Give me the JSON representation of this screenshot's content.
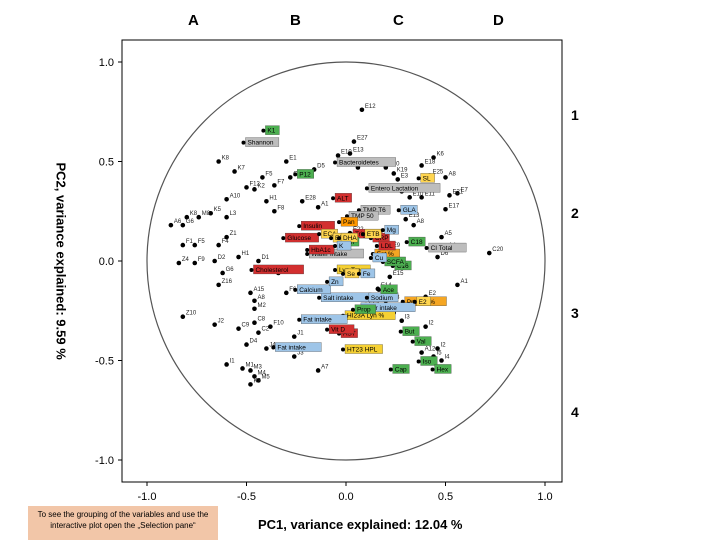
{
  "columns": [
    "A",
    "B",
    "C",
    "D"
  ],
  "regions": [
    "1",
    "2",
    "3",
    "4"
  ],
  "note": "To see the grouping of the variables and use the interactive plot open the „Selection pane“",
  "chart_data": {
    "type": "scatter",
    "xlabel": "PC1, variance explained: 12.04 %",
    "ylabel": "PC2, variance explained: 9.59 %",
    "xlim": [
      -1.0,
      1.0
    ],
    "ylim": [
      -1.0,
      1.0
    ],
    "x_ticks": [
      "-1.0",
      "-0.5",
      "0.0",
      "0.5",
      "1.0"
    ],
    "y_ticks": [
      "1.0",
      "0.5",
      "0.0",
      "-0.5",
      "-1.0"
    ],
    "unit_circle": true,
    "grid": false,
    "highlighted_points": [
      {
        "label": "Shannon",
        "x": -0.5,
        "y": 0.58,
        "color": "#bdbdbd"
      },
      {
        "label": "Bacteroidetes",
        "x": -0.04,
        "y": 0.48,
        "color": "#bdbdbd"
      },
      {
        "label": "Entero Lactation",
        "x": 0.12,
        "y": 0.35,
        "color": "#bdbdbd"
      },
      {
        "label": "TMP T6",
        "x": 0.08,
        "y": 0.24,
        "color": "#bdbdbd"
      },
      {
        "label": "TMP 50",
        "x": 0.02,
        "y": 0.21,
        "color": "#bdbdbd"
      },
      {
        "label": "CI Total",
        "x": 0.42,
        "y": 0.05,
        "color": "#bdbdbd"
      },
      {
        "label": "Water intake",
        "x": -0.18,
        "y": 0.02,
        "color": "#bdbdbd"
      },
      {
        "label": "Protein %",
        "x": 0.3,
        "y": -0.22,
        "color": "#f5a623"
      },
      {
        "label": "Fat %",
        "x": 0.15,
        "y": 0.02,
        "color": "#f5a623"
      },
      {
        "label": "HI23A Lyn %",
        "x": 0.0,
        "y": -0.29,
        "color": "#f5d033"
      },
      {
        "label": "HT23 HPL",
        "x": 0.0,
        "y": -0.46,
        "color": "#f5d033"
      },
      {
        "label": "Lyn Trp",
        "x": -0.04,
        "y": -0.06,
        "color": "#f5d033"
      },
      {
        "label": "Fat intake",
        "x": -0.35,
        "y": -0.45,
        "color": "#9ec5e8"
      },
      {
        "label": "Fat intake",
        "x": -0.22,
        "y": -0.31,
        "color": "#9ec5e8"
      },
      {
        "label": "Salt intake",
        "x": -0.12,
        "y": -0.2,
        "color": "#9ec5e8"
      },
      {
        "label": "Fiber intake",
        "x": 0.08,
        "y": -0.25,
        "color": "#9ec5e8"
      },
      {
        "label": "Sodium",
        "x": 0.12,
        "y": -0.2,
        "color": "#9ec5e8"
      },
      {
        "label": "Calcium",
        "x": -0.24,
        "y": -0.16,
        "color": "#9ec5e8"
      },
      {
        "label": "Cholesterol",
        "x": -0.46,
        "y": -0.06,
        "color": "#d32f2f"
      },
      {
        "label": "Glucose",
        "x": -0.3,
        "y": 0.1,
        "color": "#d32f2f"
      },
      {
        "label": "Insulin",
        "x": -0.22,
        "y": 0.16,
        "color": "#d32f2f"
      },
      {
        "label": "HbA1c",
        "x": -0.18,
        "y": 0.04,
        "color": "#d32f2f"
      },
      {
        "label": "Trigly",
        "x": 0.04,
        "y": 0.12,
        "color": "#d32f2f"
      },
      {
        "label": "CRP",
        "x": 0.14,
        "y": 0.1,
        "color": "#d32f2f"
      },
      {
        "label": "LDL",
        "x": 0.17,
        "y": 0.06,
        "color": "#d32f2f"
      },
      {
        "label": "ALT",
        "x": -0.05,
        "y": 0.3,
        "color": "#d32f2f"
      },
      {
        "label": "AST",
        "x": -0.02,
        "y": -0.38,
        "color": "#d32f2f"
      },
      {
        "label": "Vit D",
        "x": -0.08,
        "y": -0.36,
        "color": "#d32f2f"
      },
      {
        "label": "C18",
        "x": 0.32,
        "y": 0.08,
        "color": "#4caf50"
      },
      {
        "label": "C16",
        "x": 0.25,
        "y": -0.04,
        "color": "#4caf50"
      },
      {
        "label": "SCFA",
        "x": 0.2,
        "y": -0.02,
        "color": "#4caf50"
      },
      {
        "label": "Ace",
        "x": 0.18,
        "y": -0.16,
        "color": "#4caf50"
      },
      {
        "label": "Prop",
        "x": 0.05,
        "y": -0.26,
        "color": "#4caf50"
      },
      {
        "label": "But",
        "x": 0.29,
        "y": -0.37,
        "color": "#4caf50"
      },
      {
        "label": "Val",
        "x": 0.35,
        "y": -0.42,
        "color": "#4caf50"
      },
      {
        "label": "Iso",
        "x": 0.38,
        "y": -0.52,
        "color": "#4caf50"
      },
      {
        "label": "Cap",
        "x": 0.24,
        "y": -0.56,
        "color": "#4caf50"
      },
      {
        "label": "Hex",
        "x": 0.45,
        "y": -0.56,
        "color": "#4caf50"
      },
      {
        "label": "Ln",
        "x": 0.0,
        "y": 0.08,
        "color": "#4caf50"
      },
      {
        "label": "K1",
        "x": -0.4,
        "y": 0.64,
        "color": "#4caf50"
      },
      {
        "label": "P12",
        "x": -0.24,
        "y": 0.42,
        "color": "#4caf50"
      },
      {
        "label": "Pan",
        "x": -0.02,
        "y": 0.18,
        "color": "#ff9800"
      },
      {
        "label": "SL",
        "x": 0.38,
        "y": 0.4,
        "color": "#ffd54f"
      },
      {
        "label": "E2",
        "x": 0.36,
        "y": -0.22,
        "color": "#ffd54f"
      },
      {
        "label": "Se",
        "x": 0.0,
        "y": -0.08,
        "color": "#ffd54f"
      },
      {
        "label": "ETB",
        "x": 0.1,
        "y": 0.12,
        "color": "#ffd54f"
      },
      {
        "label": "ECA",
        "x": -0.12,
        "y": 0.12,
        "color": "#ffd54f"
      },
      {
        "label": "EPA",
        "x": -0.06,
        "y": 0.1,
        "color": "#ffd54f"
      },
      {
        "label": "DHA",
        "x": -0.02,
        "y": 0.1,
        "color": "#ffd54f"
      },
      {
        "label": "GLA",
        "x": 0.28,
        "y": 0.24,
        "color": "#9ec5e8"
      },
      {
        "label": "Mg",
        "x": 0.2,
        "y": 0.14,
        "color": "#9ec5e8"
      },
      {
        "label": "Zn",
        "x": -0.08,
        "y": -0.12,
        "color": "#9ec5e8"
      },
      {
        "label": "Fe",
        "x": 0.08,
        "y": -0.08,
        "color": "#9ec5e8"
      },
      {
        "label": "K",
        "x": -0.04,
        "y": 0.06,
        "color": "#9ec5e8"
      },
      {
        "label": "Cu",
        "x": 0.14,
        "y": 0.0,
        "color": "#9ec5e8"
      }
    ],
    "points": [
      {
        "label": "E12",
        "x": 0.08,
        "y": 0.76
      },
      {
        "label": "E27",
        "x": 0.04,
        "y": 0.6
      },
      {
        "label": "E10",
        "x": -0.04,
        "y": 0.53
      },
      {
        "label": "E13",
        "x": 0.02,
        "y": 0.54
      },
      {
        "label": "K6",
        "x": 0.44,
        "y": 0.52
      },
      {
        "label": "K8",
        "x": -0.64,
        "y": 0.5
      },
      {
        "label": "K7",
        "x": -0.56,
        "y": 0.45
      },
      {
        "label": "D2",
        "x": 0.06,
        "y": 0.47
      },
      {
        "label": "E20",
        "x": 0.2,
        "y": 0.47
      },
      {
        "label": "E18",
        "x": 0.38,
        "y": 0.48
      },
      {
        "label": "E25",
        "x": 0.42,
        "y": 0.43
      },
      {
        "label": "K19",
        "x": 0.24,
        "y": 0.44
      },
      {
        "label": "E3",
        "x": 0.26,
        "y": 0.41
      },
      {
        "label": "A8",
        "x": 0.5,
        "y": 0.42
      },
      {
        "label": "E7",
        "x": 0.56,
        "y": 0.34
      },
      {
        "label": "E4",
        "x": 0.28,
        "y": 0.35
      },
      {
        "label": "E10",
        "x": 0.32,
        "y": 0.32
      },
      {
        "label": "E11",
        "x": 0.38,
        "y": 0.32
      },
      {
        "label": "E21",
        "x": 0.52,
        "y": 0.33
      },
      {
        "label": "E17",
        "x": 0.5,
        "y": 0.26
      },
      {
        "label": "E13",
        "x": 0.3,
        "y": 0.21
      },
      {
        "label": "A8",
        "x": 0.34,
        "y": 0.18
      },
      {
        "label": "F5",
        "x": -0.42,
        "y": 0.42
      },
      {
        "label": "F7",
        "x": -0.36,
        "y": 0.38
      },
      {
        "label": "F12",
        "x": -0.5,
        "y": 0.37
      },
      {
        "label": "K2",
        "x": -0.46,
        "y": 0.36
      },
      {
        "label": "A10",
        "x": -0.6,
        "y": 0.31
      },
      {
        "label": "H1",
        "x": -0.4,
        "y": 0.3
      },
      {
        "label": "F8",
        "x": -0.36,
        "y": 0.25
      },
      {
        "label": "E28",
        "x": -0.22,
        "y": 0.3
      },
      {
        "label": "A1",
        "x": -0.14,
        "y": 0.27
      },
      {
        "label": "K5",
        "x": -0.68,
        "y": 0.24
      },
      {
        "label": "K8",
        "x": -0.8,
        "y": 0.22
      },
      {
        "label": "M8",
        "x": -0.74,
        "y": 0.22
      },
      {
        "label": "L3",
        "x": -0.6,
        "y": 0.22
      },
      {
        "label": "G6",
        "x": -0.82,
        "y": 0.18
      },
      {
        "label": "A6",
        "x": -0.88,
        "y": 0.18
      },
      {
        "label": "Z1",
        "x": -0.6,
        "y": 0.12
      },
      {
        "label": "F1",
        "x": -0.82,
        "y": 0.08
      },
      {
        "label": "F5",
        "x": -0.76,
        "y": 0.08
      },
      {
        "label": "F4",
        "x": -0.64,
        "y": 0.08
      },
      {
        "label": "Z4",
        "x": -0.84,
        "y": -0.01
      },
      {
        "label": "F9",
        "x": -0.76,
        "y": -0.01
      },
      {
        "label": "D2",
        "x": -0.66,
        "y": 0.0
      },
      {
        "label": "H1",
        "x": -0.54,
        "y": 0.02
      },
      {
        "label": "D1",
        "x": -0.44,
        "y": 0.0
      },
      {
        "label": "G6",
        "x": -0.62,
        "y": -0.06
      },
      {
        "label": "Z16",
        "x": -0.64,
        "y": -0.12
      },
      {
        "label": "A15",
        "x": -0.48,
        "y": -0.16
      },
      {
        "label": "A8",
        "x": -0.46,
        "y": -0.2
      },
      {
        "label": "Z10",
        "x": -0.82,
        "y": -0.28
      },
      {
        "label": "J2",
        "x": -0.66,
        "y": -0.32
      },
      {
        "label": "C9",
        "x": -0.54,
        "y": -0.34
      },
      {
        "label": "C8",
        "x": -0.46,
        "y": -0.31
      },
      {
        "label": "F10",
        "x": -0.38,
        "y": -0.33
      },
      {
        "label": "C2",
        "x": -0.44,
        "y": -0.36
      },
      {
        "label": "J1",
        "x": -0.26,
        "y": -0.38
      },
      {
        "label": "D4",
        "x": -0.5,
        "y": -0.42
      },
      {
        "label": "J4",
        "x": -0.4,
        "y": -0.44
      },
      {
        "label": "J3",
        "x": -0.26,
        "y": -0.48
      },
      {
        "label": "I1",
        "x": -0.6,
        "y": -0.52
      },
      {
        "label": "M1",
        "x": -0.52,
        "y": -0.54
      },
      {
        "label": "M3",
        "x": -0.48,
        "y": -0.55
      },
      {
        "label": "M4",
        "x": -0.46,
        "y": -0.58
      },
      {
        "label": "M5",
        "x": -0.44,
        "y": -0.6
      },
      {
        "label": "K3",
        "x": -0.48,
        "y": -0.62
      },
      {
        "label": "A7",
        "x": -0.14,
        "y": -0.55
      },
      {
        "label": "I2",
        "x": 0.46,
        "y": -0.44
      },
      {
        "label": "I5",
        "x": 0.44,
        "y": -0.48
      },
      {
        "label": "A12",
        "x": 0.38,
        "y": -0.46
      },
      {
        "label": "I4",
        "x": 0.48,
        "y": -0.5
      },
      {
        "label": "E2",
        "x": 0.4,
        "y": -0.18
      },
      {
        "label": "E29",
        "x": 0.1,
        "y": -0.22
      },
      {
        "label": "E28",
        "x": 0.2,
        "y": -0.2
      },
      {
        "label": "E14",
        "x": 0.16,
        "y": -0.14
      },
      {
        "label": "D3",
        "x": 0.24,
        "y": -0.26
      },
      {
        "label": "I2",
        "x": 0.4,
        "y": -0.33
      },
      {
        "label": "I3",
        "x": 0.28,
        "y": -0.3
      },
      {
        "label": "E22",
        "x": 0.02,
        "y": 0.14
      },
      {
        "label": "E9",
        "x": 0.22,
        "y": 0.06
      },
      {
        "label": "E15",
        "x": 0.22,
        "y": -0.08
      },
      {
        "label": "A4",
        "x": 0.5,
        "y": 0.06
      },
      {
        "label": "A5",
        "x": 0.48,
        "y": 0.12
      },
      {
        "label": "C20",
        "x": 0.72,
        "y": 0.04
      },
      {
        "label": "A1",
        "x": 0.56,
        "y": -0.12
      },
      {
        "label": "D6",
        "x": 0.46,
        "y": 0.02
      },
      {
        "label": "C3",
        "x": -0.28,
        "y": 0.42
      },
      {
        "label": "E1",
        "x": -0.3,
        "y": 0.5
      },
      {
        "label": "D5",
        "x": -0.16,
        "y": 0.46
      },
      {
        "label": "M2",
        "x": -0.46,
        "y": -0.24
      },
      {
        "label": "F3",
        "x": -0.34,
        "y": -0.06
      },
      {
        "label": "F6",
        "x": -0.3,
        "y": -0.16
      }
    ]
  }
}
